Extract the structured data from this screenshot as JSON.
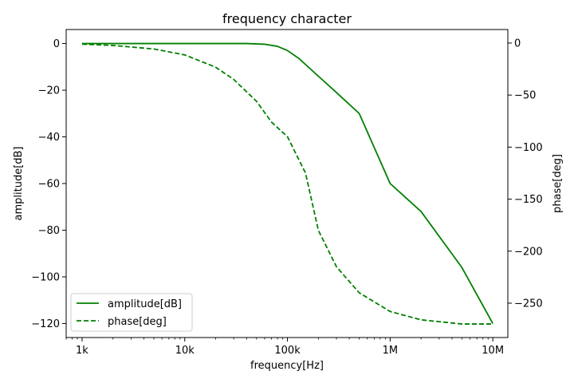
{
  "chart_data": {
    "type": "line",
    "title": "frequency character",
    "xlabel": "frequency[Hz]",
    "ylabel_left": "amplitude[dB]",
    "ylabel_right": "phase[deg]",
    "x_scale": "log",
    "xlim": [
      700,
      14000000
    ],
    "ylim_left": [
      -126,
      6
    ],
    "ylim_right": [
      -283,
      13
    ],
    "x_ticks": [
      {
        "value": 1000,
        "label": "1k"
      },
      {
        "value": 10000,
        "label": "10k"
      },
      {
        "value": 100000,
        "label": "100k"
      },
      {
        "value": 1000000,
        "label": "1M"
      },
      {
        "value": 10000000,
        "label": "10M"
      }
    ],
    "y_left_ticks": [
      {
        "value": 0,
        "label": "0"
      },
      {
        "value": -20,
        "label": "−20"
      },
      {
        "value": -40,
        "label": "−40"
      },
      {
        "value": -60,
        "label": "−60"
      },
      {
        "value": -80,
        "label": "−80"
      },
      {
        "value": -100,
        "label": "−100"
      },
      {
        "value": -120,
        "label": "−120"
      }
    ],
    "y_right_ticks": [
      {
        "value": 0,
        "label": "0"
      },
      {
        "value": -50,
        "label": "−50"
      },
      {
        "value": -100,
        "label": "−100"
      },
      {
        "value": -150,
        "label": "−150"
      },
      {
        "value": -200,
        "label": "−200"
      },
      {
        "value": -250,
        "label": "−250"
      }
    ],
    "grid": false,
    "legend_position": "lower-left",
    "series": [
      {
        "name": "amplitude[dB]",
        "axis": "left",
        "color": "#008000",
        "style": "solid",
        "x": [
          1000,
          5000,
          20000,
          40000,
          60000,
          80000,
          100000,
          130000,
          200000,
          300000,
          500000,
          1000000,
          2000000,
          5000000,
          10000000
        ],
        "y": [
          0,
          0,
          0,
          0,
          -0.3,
          -1.2,
          -3.0,
          -6.5,
          -14.0,
          -21.0,
          -30.0,
          -60.0,
          -72.0,
          -96.0,
          -120.0
        ]
      },
      {
        "name": "phase[deg]",
        "axis": "right",
        "color": "#008000",
        "style": "dashed",
        "x": [
          1000,
          2000,
          5000,
          10000,
          20000,
          30000,
          50000,
          70000,
          100000,
          150000,
          200000,
          300000,
          500000,
          1000000,
          2000000,
          5000000,
          10000000
        ],
        "y": [
          -1.1,
          -2.3,
          -5.7,
          -11.4,
          -23.2,
          -35.0,
          -56.0,
          -76.0,
          -90.0,
          -125.0,
          -180.0,
          -215.0,
          -240.0,
          -258.0,
          -266.0,
          -270.0,
          -270.0
        ]
      }
    ]
  }
}
